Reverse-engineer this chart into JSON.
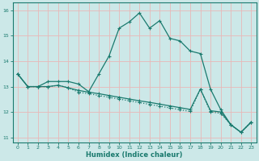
{
  "xlabel": "Humidex (Indice chaleur)",
  "bg_color": "#cce8e8",
  "grid_color": "#e8b8b8",
  "line_color": "#1a7a6e",
  "xlim": [
    -0.5,
    23.5
  ],
  "ylim": [
    10.8,
    16.3
  ],
  "yticks": [
    11,
    12,
    13,
    14,
    15,
    16
  ],
  "xticks": [
    0,
    1,
    2,
    3,
    4,
    5,
    6,
    7,
    8,
    9,
    10,
    11,
    12,
    13,
    14,
    15,
    16,
    17,
    18,
    19,
    20,
    21,
    22,
    23
  ],
  "series1_x": [
    0,
    1,
    2,
    3,
    4,
    5,
    6,
    7,
    8,
    9,
    10,
    11,
    12,
    13,
    14,
    15,
    16,
    17,
    18,
    19,
    20,
    21,
    22,
    23
  ],
  "series1_y": [
    13.5,
    13.0,
    13.0,
    13.2,
    13.2,
    13.2,
    13.1,
    12.8,
    13.5,
    14.2,
    15.3,
    15.55,
    15.9,
    15.3,
    15.6,
    14.9,
    14.8,
    14.4,
    14.3,
    12.9,
    12.1,
    11.5,
    11.2,
    11.6
  ],
  "series2_x": [
    0,
    1,
    2,
    3,
    4,
    5,
    6,
    7,
    8,
    9,
    10,
    11,
    12,
    13,
    14,
    15,
    16,
    17,
    18,
    19,
    20,
    21,
    22,
    23
  ],
  "series2_y": [
    13.5,
    13.0,
    13.0,
    13.0,
    13.05,
    12.95,
    12.85,
    12.78,
    12.72,
    12.65,
    12.58,
    12.51,
    12.44,
    12.38,
    12.31,
    12.24,
    12.17,
    12.1,
    12.9,
    12.05,
    12.0,
    11.5,
    11.2,
    11.6
  ],
  "series3_x": [
    0,
    1,
    2,
    3,
    4,
    5,
    6,
    7,
    8,
    9,
    10,
    11,
    12,
    13,
    14,
    15,
    16,
    17,
    18,
    19,
    20,
    21,
    22,
    23
  ],
  "series3_y": [
    13.5,
    13.0,
    13.0,
    13.0,
    13.05,
    12.95,
    12.78,
    12.72,
    12.65,
    12.58,
    12.51,
    12.44,
    12.37,
    12.3,
    12.23,
    12.16,
    12.09,
    12.02,
    12.9,
    12.0,
    11.95,
    11.5,
    11.2,
    11.6
  ]
}
